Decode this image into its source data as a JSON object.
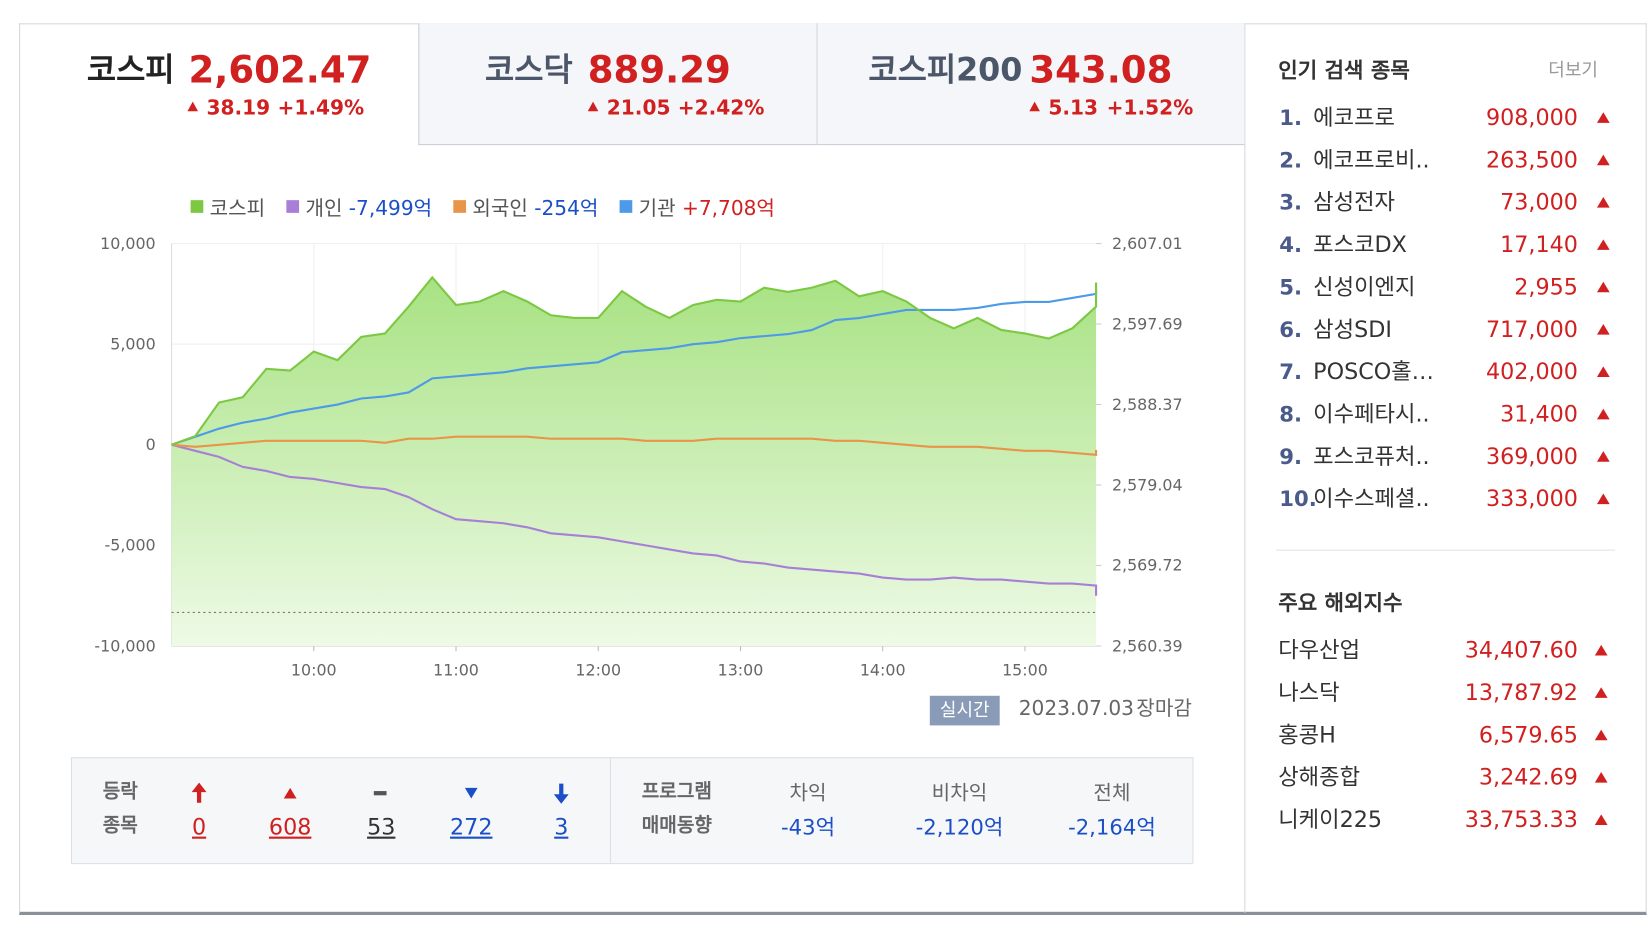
{
  "indices": [
    {
      "name": "코스피",
      "value": "2,602.47",
      "change": "38.19",
      "rate": "+1.49%"
    },
    {
      "name": "코스닥",
      "value": "889.29",
      "change": "21.05",
      "rate": "+2.42%"
    },
    {
      "name": "코스피200",
      "value": "343.08",
      "change": "5.13",
      "rate": "+1.52%"
    }
  ],
  "chart_data": {
    "type": "line",
    "x": [
      "09:00",
      "09:10",
      "09:20",
      "09:30",
      "09:40",
      "09:50",
      "10:00",
      "10:10",
      "10:20",
      "10:30",
      "10:40",
      "10:50",
      "11:00",
      "11:10",
      "11:20",
      "11:30",
      "11:40",
      "11:50",
      "12:00",
      "12:10",
      "12:20",
      "12:30",
      "12:40",
      "12:50",
      "13:00",
      "13:10",
      "13:20",
      "13:30",
      "13:40",
      "13:50",
      "14:00",
      "14:10",
      "14:20",
      "14:30",
      "14:40",
      "14:50",
      "15:00",
      "15:10",
      "15:20",
      "15:30",
      "15:30"
    ],
    "xlim": [
      "09:00",
      "15:30"
    ],
    "xticks": [
      "10:00",
      "11:00",
      "12:00",
      "13:00",
      "14:00",
      "15:00"
    ],
    "ylim": [
      -10000,
      10000
    ],
    "yticks": [
      {
        "value": 10000,
        "label": "10,000"
      },
      {
        "value": 5000,
        "label": "5,000"
      },
      0,
      {
        "value": -5000,
        "label": "-5,000"
      },
      {
        "value": -10000,
        "label": "-10,000"
      }
    ],
    "y2lim": [
      2560.39,
      2607.01
    ],
    "y2ticks": [
      {
        "value": 2607.01,
        "label": "2,607.01"
      },
      {
        "value": 2597.69,
        "label": "2,597.69"
      },
      {
        "value": 2588.37,
        "label": "2,588.37"
      },
      {
        "value": 2579.04,
        "label": "2,579.04"
      },
      {
        "value": 2569.72,
        "label": "2,569.72"
      },
      {
        "value": 2560.39,
        "label": "2,560.39"
      }
    ],
    "grid": true,
    "reference_line": 2564.28,
    "series": [
      {
        "name": "코스피",
        "color": "#7cc843",
        "axis": "y2",
        "area": true,
        "values": [
          2583.7,
          2584.7,
          2588.6,
          2589.2,
          2592.5,
          2592.3,
          2594.5,
          2593.5,
          2596.2,
          2596.6,
          2599.7,
          2603.1,
          2599.9,
          2600.3,
          2601.5,
          2600.3,
          2598.7,
          2598.4,
          2598.4,
          2601.5,
          2599.7,
          2598.4,
          2599.9,
          2600.5,
          2600.3,
          2601.9,
          2601.4,
          2601.9,
          2602.7,
          2600.9,
          2601.5,
          2600.3,
          2598.4,
          2597.2,
          2598.4,
          2597.0,
          2596.6,
          2596.0,
          2597.2,
          2599.7,
          2602.5
        ]
      },
      {
        "name": "개인",
        "summary": "-7,499억",
        "color": "#a77fd6",
        "values": [
          0,
          -300,
          -600,
          -1100,
          -1300,
          -1600,
          -1700,
          -1900,
          -2100,
          -2200,
          -2600,
          -3200,
          -3700,
          -3800,
          -3900,
          -4100,
          -4400,
          -4500,
          -4600,
          -4800,
          -5000,
          -5200,
          -5400,
          -5500,
          -5800,
          -5900,
          -6100,
          -6200,
          -6300,
          -6400,
          -6600,
          -6700,
          -6700,
          -6600,
          -6700,
          -6700,
          -6800,
          -6900,
          -6900,
          -7000,
          -7499
        ]
      },
      {
        "name": "외국인",
        "summary": "-254억",
        "color": "#e8954a",
        "values": [
          0,
          -100,
          0,
          100,
          200,
          200,
          200,
          200,
          200,
          100,
          300,
          300,
          400,
          400,
          400,
          400,
          300,
          300,
          300,
          300,
          200,
          200,
          200,
          300,
          300,
          300,
          300,
          300,
          200,
          200,
          100,
          0,
          -100,
          -100,
          -100,
          -200,
          -300,
          -300,
          -400,
          -500,
          -254
        ]
      },
      {
        "name": "기관",
        "summary": "+7,708억",
        "color": "#4c9ae8",
        "values": [
          0,
          400,
          800,
          1100,
          1300,
          1600,
          1800,
          2000,
          2300,
          2400,
          2600,
          3300,
          3400,
          3500,
          3600,
          3800,
          3900,
          4000,
          4100,
          4600,
          4700,
          4800,
          5000,
          5100,
          5300,
          5400,
          5500,
          5700,
          6200,
          6300,
          6500,
          6700,
          6700,
          6700,
          6800,
          7000,
          7100,
          7100,
          7300,
          7500,
          7708
        ]
      }
    ]
  },
  "status": {
    "badge": "실시간",
    "date": "2023.07.03",
    "state": "장마감"
  },
  "breadth": {
    "label": [
      "등락",
      "종목"
    ],
    "counts": [
      "0",
      "608",
      "53",
      "272",
      "3"
    ]
  },
  "program": {
    "label": [
      "프로그램",
      "매매동향"
    ],
    "items": [
      {
        "name": "차익",
        "value": "-43억"
      },
      {
        "name": "비차익",
        "value": "-2,120억"
      },
      {
        "name": "전체",
        "value": "-2,164억"
      }
    ]
  },
  "popular": {
    "title": "인기 검색 종목",
    "more": "더보기",
    "items": [
      {
        "rank": "1.",
        "name": "에코프로",
        "price": "908,000"
      },
      {
        "rank": "2.",
        "name": "에코프로비..",
        "price": "263,500"
      },
      {
        "rank": "3.",
        "name": "삼성전자",
        "price": "73,000"
      },
      {
        "rank": "4.",
        "name": "포스코DX",
        "price": "17,140"
      },
      {
        "rank": "5.",
        "name": "신성이엔지",
        "price": "2,955"
      },
      {
        "rank": "6.",
        "name": "삼성SDI",
        "price": "717,000"
      },
      {
        "rank": "7.",
        "name": "POSCO홀…",
        "price": "402,000"
      },
      {
        "rank": "8.",
        "name": "이수페타시..",
        "price": "31,400"
      },
      {
        "rank": "9.",
        "name": "포스코퓨처..",
        "price": "369,000"
      },
      {
        "rank": "10.",
        "name": "이수스페셜..",
        "price": "333,000"
      }
    ]
  },
  "overseas": {
    "title": "주요 해외지수",
    "items": [
      {
        "name": "다우산업",
        "value": "34,407.60"
      },
      {
        "name": "나스닥",
        "value": "13,787.92"
      },
      {
        "name": "홍콩H",
        "value": "6,579.65"
      },
      {
        "name": "상해종합",
        "value": "3,242.69"
      },
      {
        "name": "니케이225",
        "value": "33,753.33"
      }
    ]
  }
}
